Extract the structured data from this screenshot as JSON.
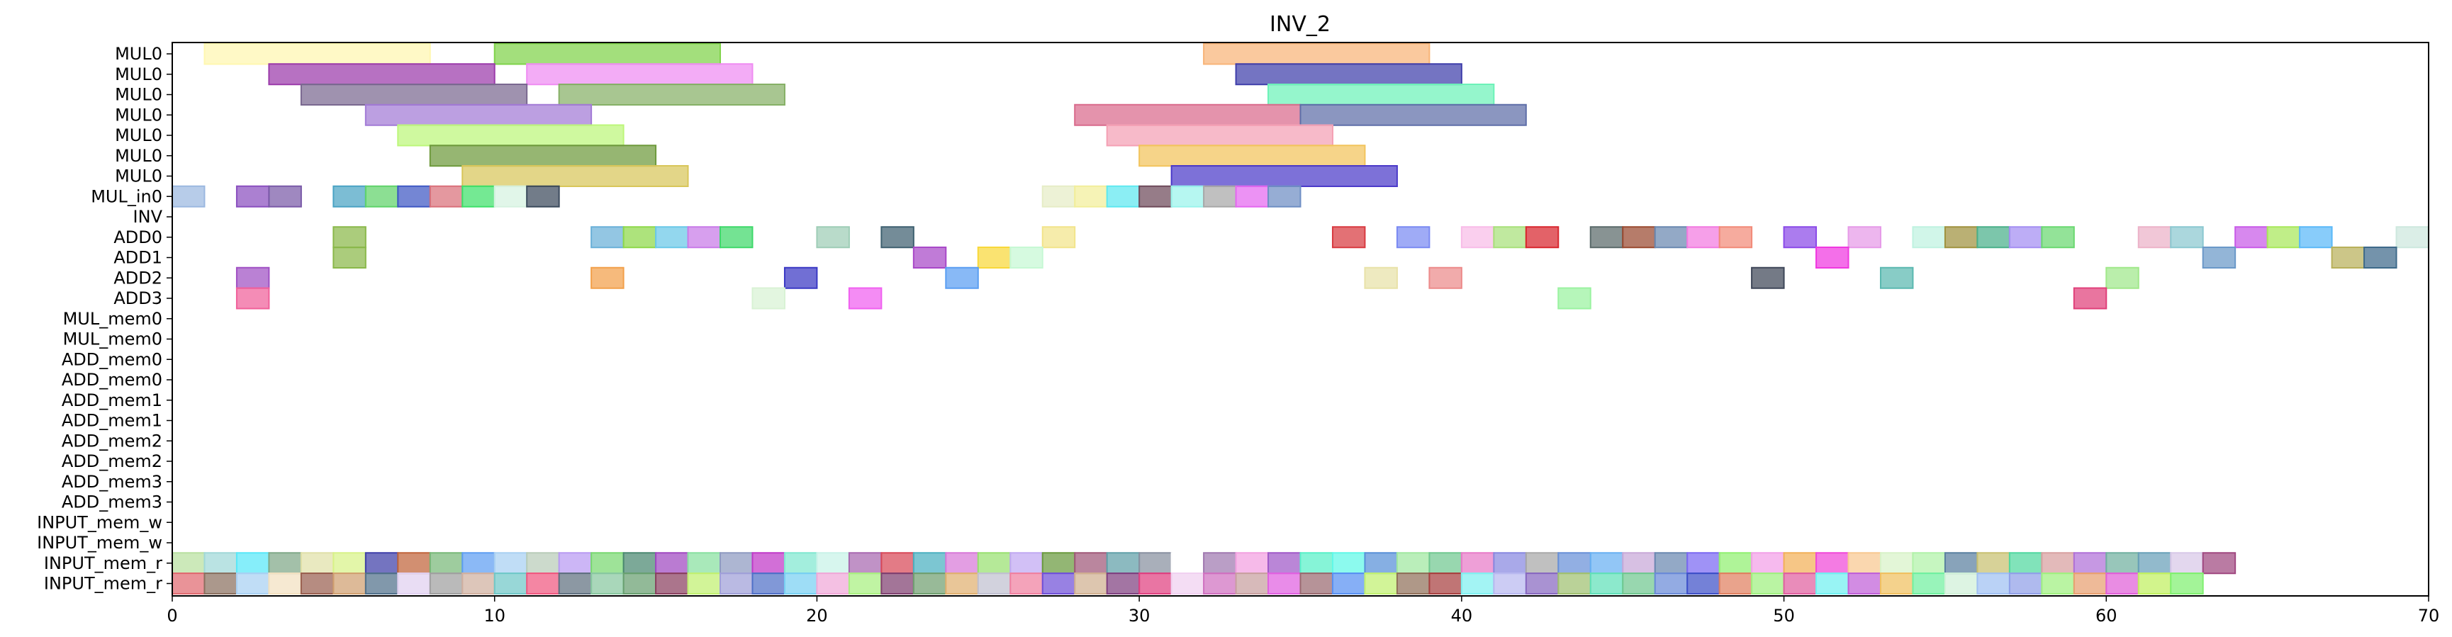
{
  "chart_data": {
    "type": "gantt",
    "title": "INV_2",
    "xlabel": "",
    "ylabel": "",
    "xlim": [
      0,
      70
    ],
    "x_ticks": [
      0,
      10,
      20,
      30,
      40,
      50,
      60,
      70
    ],
    "grid": false,
    "legend": "none",
    "rows": [
      "MUL0",
      "MUL0",
      "MUL0",
      "MUL0",
      "MUL0",
      "MUL0",
      "MUL0",
      "MUL_in0",
      "INV",
      "ADD0",
      "ADD1",
      "ADD2",
      "ADD3",
      "MUL_mem0",
      "MUL_mem0",
      "ADD_mem0",
      "ADD_mem0",
      "ADD_mem1",
      "ADD_mem1",
      "ADD_mem2",
      "ADD_mem2",
      "ADD_mem3",
      "ADD_mem3",
      "INPUT_mem_w",
      "INPUT_mem_w",
      "INPUT_mem_r",
      "INPUT_mem_r"
    ],
    "tasks": [
      {
        "row": 0,
        "start": 1,
        "end": 8,
        "color": "#fff7b0"
      },
      {
        "row": 0,
        "start": 10,
        "end": 17,
        "color": "#7fd34a"
      },
      {
        "row": 0,
        "start": 32,
        "end": 39,
        "color": "#f8b478"
      },
      {
        "row": 1,
        "start": 3,
        "end": 10,
        "color": "#9b3aaa"
      },
      {
        "row": 1,
        "start": 11,
        "end": 18,
        "color": "#ef8cf2"
      },
      {
        "row": 1,
        "start": 33,
        "end": 40,
        "color": "#3f3eaa"
      },
      {
        "row": 2,
        "start": 4,
        "end": 11,
        "color": "#7a6890"
      },
      {
        "row": 2,
        "start": 12,
        "end": 19,
        "color": "#86b066"
      },
      {
        "row": 2,
        "start": 34,
        "end": 41,
        "color": "#6cf2b8"
      },
      {
        "row": 3,
        "start": 6,
        "end": 13,
        "color": "#a27ad6"
      },
      {
        "row": 3,
        "start": 28,
        "end": 35,
        "color": "#d96a8c"
      },
      {
        "row": 3,
        "start": 35,
        "end": 42,
        "color": "#5e6ea8"
      },
      {
        "row": 4,
        "start": 7,
        "end": 14,
        "color": "#bdf77a"
      },
      {
        "row": 4,
        "start": 29,
        "end": 36,
        "color": "#f4a0b4"
      },
      {
        "row": 5,
        "start": 8,
        "end": 15,
        "color": "#6e9a3c"
      },
      {
        "row": 5,
        "start": 30,
        "end": 37,
        "color": "#f2c45c"
      },
      {
        "row": 6,
        "start": 9,
        "end": 16,
        "color": "#d8c65a"
      },
      {
        "row": 6,
        "start": 31,
        "end": 38,
        "color": "#4b3ac9"
      },
      {
        "row": 7,
        "start": 0,
        "end": 1,
        "color": "#9bb8e0"
      },
      {
        "row": 7,
        "start": 2,
        "end": 3,
        "color": "#8a4fbf"
      },
      {
        "row": 7,
        "start": 3,
        "end": 4,
        "color": "#7a5aa8"
      },
      {
        "row": 7,
        "start": 5,
        "end": 6,
        "color": "#4aa3c4"
      },
      {
        "row": 7,
        "start": 6,
        "end": 7,
        "color": "#5fd36a"
      },
      {
        "row": 7,
        "start": 7,
        "end": 8,
        "color": "#3f58c4"
      },
      {
        "row": 7,
        "start": 8,
        "end": 9,
        "color": "#d9707a"
      },
      {
        "row": 7,
        "start": 9,
        "end": 10,
        "color": "#3ee06a"
      },
      {
        "row": 7,
        "start": 10,
        "end": 11,
        "color": "#d6f2e0"
      },
      {
        "row": 7,
        "start": 11,
        "end": 12,
        "color": "#3b4a5c"
      },
      {
        "row": 7,
        "start": 27,
        "end": 28,
        "color": "#e6edc6"
      },
      {
        "row": 7,
        "start": 28,
        "end": 29,
        "color": "#f2ee9a"
      },
      {
        "row": 7,
        "start": 29,
        "end": 30,
        "color": "#5ee8f0"
      },
      {
        "row": 7,
        "start": 30,
        "end": 31,
        "color": "#6e4a5a"
      },
      {
        "row": 7,
        "start": 31,
        "end": 32,
        "color": "#9af4ec"
      },
      {
        "row": 7,
        "start": 32,
        "end": 33,
        "color": "#a8a8a8"
      },
      {
        "row": 7,
        "start": 33,
        "end": 34,
        "color": "#e468f0"
      },
      {
        "row": 7,
        "start": 34,
        "end": 35,
        "color": "#6e8ec4"
      },
      {
        "row": 9,
        "start": 5,
        "end": 6,
        "color": "#8ab84a"
      },
      {
        "row": 9,
        "start": 13,
        "end": 14,
        "color": "#6ab0d8"
      },
      {
        "row": 9,
        "start": 14,
        "end": 15,
        "color": "#8ed84a"
      },
      {
        "row": 9,
        "start": 15,
        "end": 16,
        "color": "#6ac8e8"
      },
      {
        "row": 9,
        "start": 16,
        "end": 17,
        "color": "#c87ae8"
      },
      {
        "row": 9,
        "start": 17,
        "end": 18,
        "color": "#3ed86a"
      },
      {
        "row": 9,
        "start": 20,
        "end": 21,
        "color": "#9ecdb6"
      },
      {
        "row": 9,
        "start": 22,
        "end": 23,
        "color": "#3e6070"
      },
      {
        "row": 9,
        "start": 27,
        "end": 28,
        "color": "#f2e48a"
      },
      {
        "row": 9,
        "start": 36,
        "end": 37,
        "color": "#d83a40"
      },
      {
        "row": 9,
        "start": 38,
        "end": 39,
        "color": "#7a8af2"
      },
      {
        "row": 9,
        "start": 40,
        "end": 41,
        "color": "#f8bce8"
      },
      {
        "row": 9,
        "start": 41,
        "end": 42,
        "color": "#a8e07a"
      },
      {
        "row": 9,
        "start": 42,
        "end": 43,
        "color": "#d8262e"
      },
      {
        "row": 9,
        "start": 44,
        "end": 45,
        "color": "#5a6a6a"
      },
      {
        "row": 9,
        "start": 45,
        "end": 46,
        "color": "#9a4a30"
      },
      {
        "row": 9,
        "start": 46,
        "end": 47,
        "color": "#6a88b0"
      },
      {
        "row": 9,
        "start": 47,
        "end": 48,
        "color": "#f27ae0"
      },
      {
        "row": 9,
        "start": 48,
        "end": 49,
        "color": "#f28a78"
      },
      {
        "row": 9,
        "start": 50,
        "end": 51,
        "color": "#8a4ae8"
      },
      {
        "row": 9,
        "start": 52,
        "end": 53,
        "color": "#e69ae8"
      },
      {
        "row": 9,
        "start": 54,
        "end": 55,
        "color": "#bff2e0"
      },
      {
        "row": 9,
        "start": 55,
        "end": 56,
        "color": "#a0923e"
      },
      {
        "row": 9,
        "start": 56,
        "end": 57,
        "color": "#4ab08a"
      },
      {
        "row": 9,
        "start": 57,
        "end": 58,
        "color": "#a48ef2"
      },
      {
        "row": 9,
        "start": 58,
        "end": 59,
        "color": "#6ad870"
      },
      {
        "row": 9,
        "start": 61,
        "end": 62,
        "color": "#ecb2c8"
      },
      {
        "row": 9,
        "start": 62,
        "end": 63,
        "color": "#8ac8d0"
      },
      {
        "row": 9,
        "start": 64,
        "end": 65,
        "color": "#c85ae8"
      },
      {
        "row": 9,
        "start": 65,
        "end": 66,
        "color": "#a8e85a"
      },
      {
        "row": 9,
        "start": 66,
        "end": 67,
        "color": "#5ab8f8"
      },
      {
        "row": 9,
        "start": 69,
        "end": 70,
        "color": "#cde8de"
      },
      {
        "row": 10,
        "start": 5,
        "end": 6,
        "color": "#8ab84a"
      },
      {
        "row": 10,
        "start": 23,
        "end": 24,
        "color": "#a848c8"
      },
      {
        "row": 10,
        "start": 25,
        "end": 26,
        "color": "#f8d83a"
      },
      {
        "row": 10,
        "start": 26,
        "end": 27,
        "color": "#c6f8d4"
      },
      {
        "row": 10,
        "start": 51,
        "end": 52,
        "color": "#f038e0"
      },
      {
        "row": 10,
        "start": 63,
        "end": 64,
        "color": "#6a98c8"
      },
      {
        "row": 10,
        "start": 67,
        "end": 68,
        "color": "#b8b05a"
      },
      {
        "row": 10,
        "start": 68,
        "end": 69,
        "color": "#3e6a8a"
      },
      {
        "row": 11,
        "start": 2,
        "end": 3,
        "color": "#a050c4"
      },
      {
        "row": 11,
        "start": 13,
        "end": 14,
        "color": "#f2a04a"
      },
      {
        "row": 11,
        "start": 19,
        "end": 20,
        "color": "#3a38c4"
      },
      {
        "row": 11,
        "start": 24,
        "end": 25,
        "color": "#5a9ef2"
      },
      {
        "row": 11,
        "start": 37,
        "end": 38,
        "color": "#e8e2a8"
      },
      {
        "row": 11,
        "start": 39,
        "end": 40,
        "color": "#ec8a8a"
      },
      {
        "row": 11,
        "start": 49,
        "end": 50,
        "color": "#3e4658"
      },
      {
        "row": 11,
        "start": 53,
        "end": 54,
        "color": "#5ab8b0"
      },
      {
        "row": 11,
        "start": 60,
        "end": 61,
        "color": "#a0e88a"
      },
      {
        "row": 12,
        "start": 2,
        "end": 3,
        "color": "#f0609a"
      },
      {
        "row": 12,
        "start": 18,
        "end": 19,
        "color": "#d8f2d4"
      },
      {
        "row": 12,
        "start": 21,
        "end": 22,
        "color": "#f060f0"
      },
      {
        "row": 12,
        "start": 43,
        "end": 44,
        "color": "#9af2a0"
      },
      {
        "row": 12,
        "start": 59,
        "end": 60,
        "color": "#e0407a"
      }
    ],
    "input_rows": [
      {
        "row": 25,
        "colors": [
          "#b8e0a0",
          "#a0d8d8",
          "#58e8f8",
          "#80a888",
          "#e0e0a8",
          "#d8f288",
          "#3e3ea8",
          "#c0643a",
          "#78b878",
          "#5e9ef2",
          "#a8d0f2",
          "#b8ccb8",
          "#b89af2",
          "#78d870",
          "#4a8870",
          "#a048c0",
          "#88e0a0",
          "#8e9ac0",
          "#c038c8",
          "#80e8d0",
          "#c8f2e8",
          "#a868b0",
          "#d84858",
          "#4ab0c0",
          "#d878d8",
          "#98e070",
          "#c0a8f2",
          "#6a9a3e",
          "#a05878",
          "#60a0a8",
          "#8890a0",
          "#ffffff",
          "#a078b0",
          "#f2a0e0",
          "#a058c8",
          "#58f0c8",
          "#60f8e8",
          "#5890d8",
          "#a0e8a0",
          "#70c890",
          "#e87ac8",
          "#8888e0",
          "#a8a8a8",
          "#6890d8",
          "#68b0f2",
          "#c8a8d8",
          "#6a88b0",
          "#7a68f2",
          "#90f070",
          "#f2a0e8",
          "#f2b058",
          "#f048d8",
          "#f8c890",
          "#d8f2c8",
          "#b0f2a8",
          "#5a80a0",
          "#c8c070",
          "#50d8a0",
          "#d8a0a0",
          "#b070d8",
          "#70b0a0",
          "#68a0b8",
          "#d8c8e8",
          "#a04880"
        ]
      },
      {
        "row": 26,
        "colors": [
          "#e06a70",
          "#8a7060",
          "#a8d0f2",
          "#f2e0c0",
          "#9a6050",
          "#d0a070",
          "#50708a",
          "#e0d0f0",
          "#a0a0a0",
          "#d0b0a0",
          "#70c8c8",
          "#f05880",
          "#607080",
          "#88c8a0",
          "#68a070",
          "#8a4060",
          "#c0f070",
          "#a0a0d8",
          "#5070c8",
          "#78d0f2",
          "#f0a8d8",
          "#a8f080",
          "#804070",
          "#70a070",
          "#e0b070",
          "#c0c0d0",
          "#f080a0",
          "#7050d8",
          "#d0b090",
          "#804080",
          "#e04080",
          "#f0d0f0",
          "#d070c0",
          "#c8a0a0",
          "#e060e0",
          "#9a6a70",
          "#5890f2",
          "#c0f070",
          "#90705a",
          "#a84040",
          "#80f0f0",
          "#b8b8f0",
          "#8868c0",
          "#a0c070",
          "#60e0b8",
          "#70c890",
          "#6a8ad8",
          "#3e50c8",
          "#e08060",
          "#a0f080",
          "#e060a0",
          "#70f0f0",
          "#c060d8",
          "#f0c060",
          "#70f0a0",
          "#d0f0d8",
          "#a0c0f2",
          "#90a0e8",
          "#a0f080",
          "#e8a070",
          "#e060d8",
          "#c0f060",
          "#80f070"
        ]
      }
    ]
  }
}
